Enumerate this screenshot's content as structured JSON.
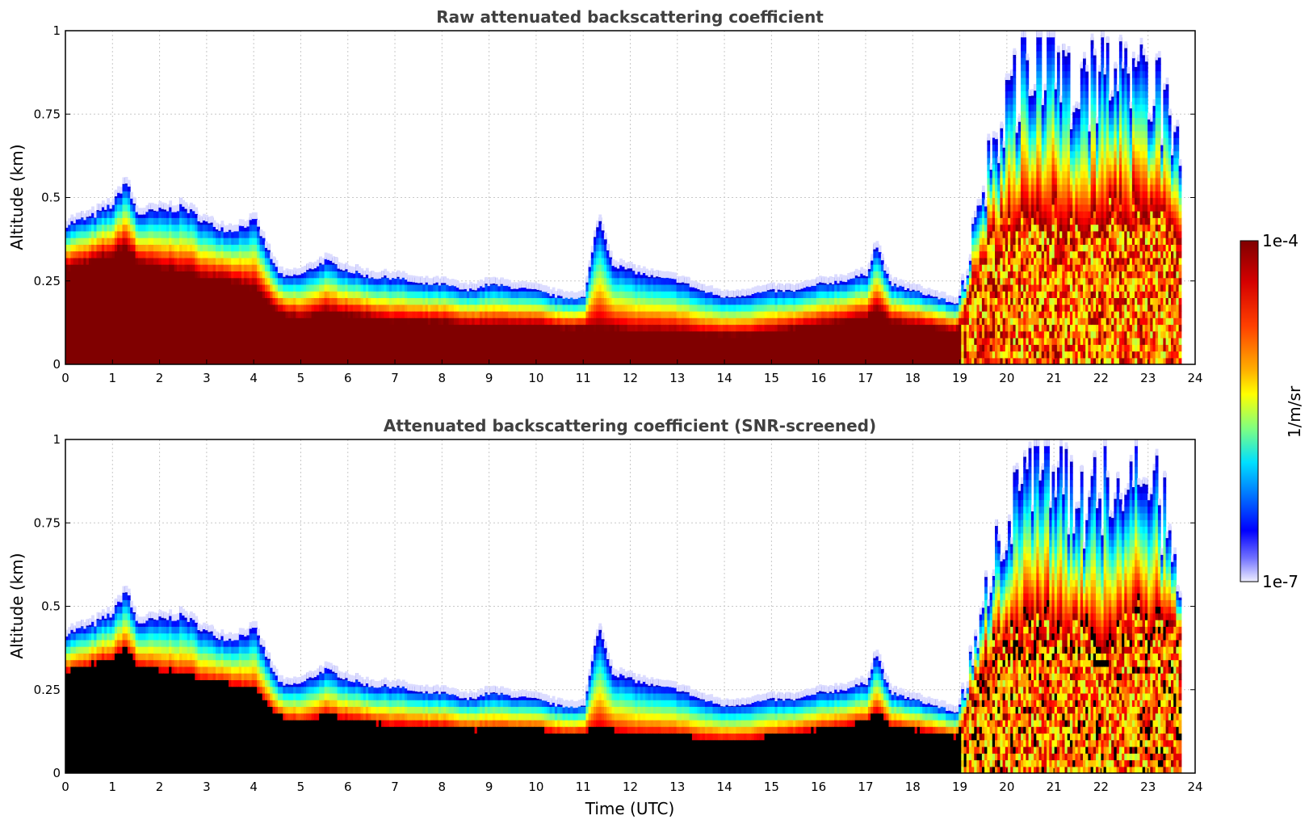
{
  "chart_data": [
    {
      "type": "heatmap",
      "title": "Raw attenuated backscattering coefficient",
      "xlabel": "",
      "ylabel": "Altitude (km)",
      "xlim": [
        0,
        24
      ],
      "ylim": [
        0,
        1
      ],
      "xticks": [
        "0",
        "1",
        "2",
        "3",
        "4",
        "5",
        "6",
        "7",
        "8",
        "9",
        "10",
        "11",
        "12",
        "13",
        "14",
        "15",
        "16",
        "17",
        "18",
        "19",
        "20",
        "21",
        "22",
        "23",
        "24"
      ],
      "yticks": [
        "0",
        "0.25",
        "0.5",
        "0.75",
        "1"
      ],
      "grid": true,
      "colormap": "jet",
      "color_scale": "log",
      "profile": {
        "time_utc": [
          0,
          0.5,
          1,
          1.25,
          1.5,
          2,
          2.5,
          3,
          3.5,
          4,
          4.4,
          4.6,
          5,
          5.5,
          6,
          6.5,
          7,
          7.5,
          8,
          8.5,
          9,
          9.5,
          10,
          10.5,
          11,
          11.3,
          11.6,
          12,
          12.5,
          13,
          13.5,
          14,
          14.5,
          15,
          15.5,
          16,
          16.5,
          17,
          17.2,
          17.5,
          18,
          18.5,
          18.9,
          19.1,
          19.5,
          20,
          20.5,
          21,
          21.5,
          22,
          22.5,
          23,
          23.5,
          23.7
        ],
        "layer_top_km": [
          0.42,
          0.44,
          0.48,
          0.55,
          0.45,
          0.46,
          0.47,
          0.42,
          0.4,
          0.43,
          0.3,
          0.26,
          0.27,
          0.31,
          0.28,
          0.26,
          0.26,
          0.24,
          0.24,
          0.22,
          0.24,
          0.23,
          0.22,
          0.2,
          0.2,
          0.44,
          0.3,
          0.28,
          0.26,
          0.25,
          0.22,
          0.2,
          0.21,
          0.22,
          0.22,
          0.24,
          0.25,
          0.27,
          0.36,
          0.24,
          0.22,
          0.2,
          0.18,
          0.25,
          0.55,
          0.75,
          0.95,
          0.9,
          0.8,
          0.85,
          0.9,
          0.88,
          0.7,
          0.6
        ],
        "dense_top_km": [
          0.28,
          0.3,
          0.32,
          0.35,
          0.3,
          0.28,
          0.27,
          0.25,
          0.24,
          0.22,
          0.16,
          0.14,
          0.13,
          0.15,
          0.14,
          0.13,
          0.12,
          0.12,
          0.12,
          0.11,
          0.11,
          0.11,
          0.11,
          0.1,
          0.1,
          0.1,
          0.1,
          0.09,
          0.09,
          0.09,
          0.08,
          0.08,
          0.08,
          0.09,
          0.1,
          0.11,
          0.12,
          0.13,
          0.16,
          0.12,
          0.11,
          0.1,
          0.09,
          0.15,
          0.32,
          0.4,
          0.4,
          0.42,
          0.4,
          0.4,
          0.45,
          0.42,
          0.38,
          0.35
        ]
      }
    },
    {
      "type": "heatmap",
      "title": "Attenuated backscattering coefficient (SNR-screened)",
      "xlabel": "Time (UTC)",
      "ylabel": "Altitude (km)",
      "xlim": [
        0,
        24
      ],
      "ylim": [
        0,
        1
      ],
      "xticks": [
        "0",
        "1",
        "2",
        "3",
        "4",
        "5",
        "6",
        "7",
        "8",
        "9",
        "10",
        "11",
        "12",
        "13",
        "14",
        "15",
        "16",
        "17",
        "18",
        "19",
        "20",
        "21",
        "22",
        "23",
        "24"
      ],
      "yticks": [
        "0",
        "0.25",
        "0.5",
        "0.75",
        "1"
      ],
      "grid": true,
      "colormap": "jet",
      "color_scale": "log",
      "saturated_color": "#000000"
    }
  ],
  "colorbar": {
    "max_label": "1e-4",
    "min_label": "1e-7",
    "label": "1/m/sr",
    "stops": [
      "#7f0000",
      "#ff0000",
      "#ff8000",
      "#ffff00",
      "#80ff80",
      "#00ffff",
      "#0080ff",
      "#0000ff",
      "#8080ff",
      "#e8e8ff"
    ]
  }
}
